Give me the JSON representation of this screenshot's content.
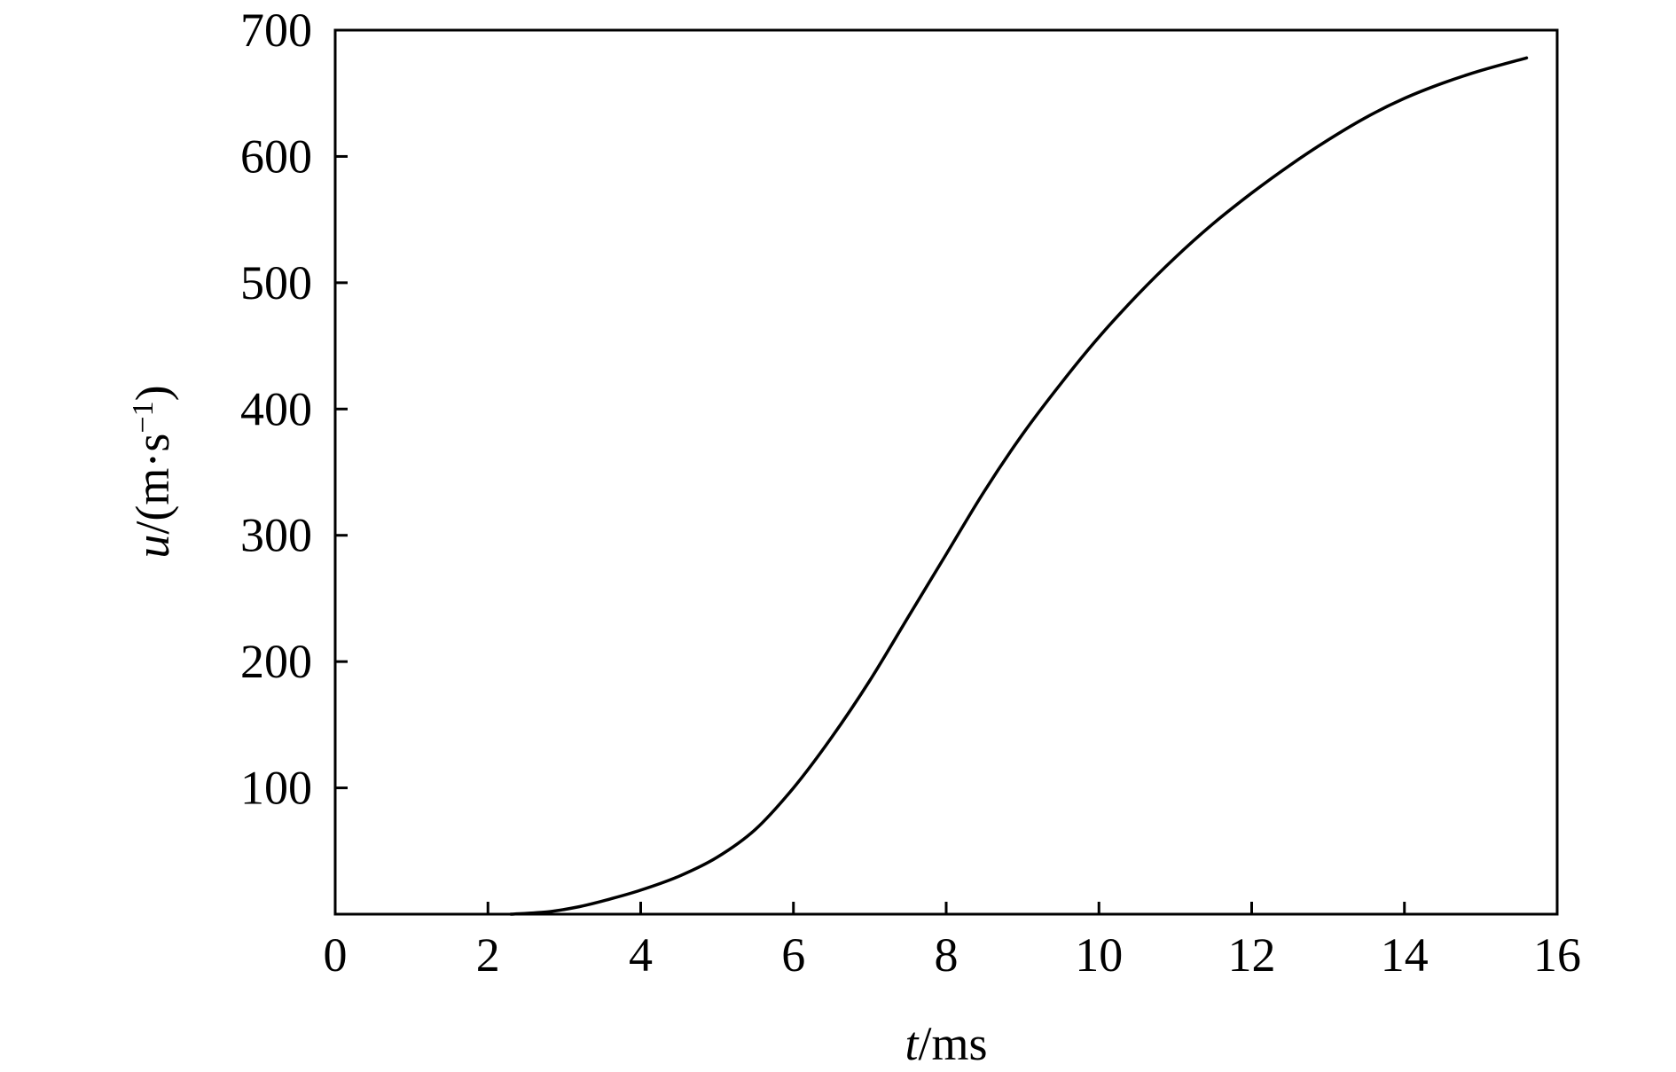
{
  "chart_data": {
    "type": "line",
    "title": "",
    "xlabel": {
      "var": "t",
      "unit": "/ms"
    },
    "ylabel": {
      "var": "u",
      "unit_open": "/(m·s",
      "unit_sup": "−1",
      "unit_close": ")"
    },
    "xlim": [
      0,
      16
    ],
    "ylim": [
      0,
      700
    ],
    "x_ticks": [
      0,
      2,
      4,
      6,
      8,
      10,
      12,
      14,
      16
    ],
    "y_ticks": [
      100,
      200,
      300,
      400,
      500,
      600,
      700
    ],
    "grid": false,
    "legend": "none",
    "series": [
      {
        "color": "#000000",
        "x": [
          2.3,
          2.8,
          3.2,
          3.6,
          4.0,
          4.5,
          5.0,
          5.5,
          6.0,
          6.5,
          7.0,
          7.5,
          8.0,
          8.5,
          9.0,
          9.5,
          10.0,
          10.5,
          11.0,
          11.5,
          12.0,
          12.5,
          13.0,
          13.5,
          14.0,
          14.5,
          15.0,
          15.6
        ],
        "y": [
          0,
          2,
          6,
          12,
          19,
          30,
          45,
          67,
          100,
          140,
          185,
          235,
          285,
          335,
          380,
          420,
          457,
          490,
          520,
          547,
          571,
          593,
          613,
          631,
          646,
          658,
          668,
          678
        ]
      }
    ]
  }
}
